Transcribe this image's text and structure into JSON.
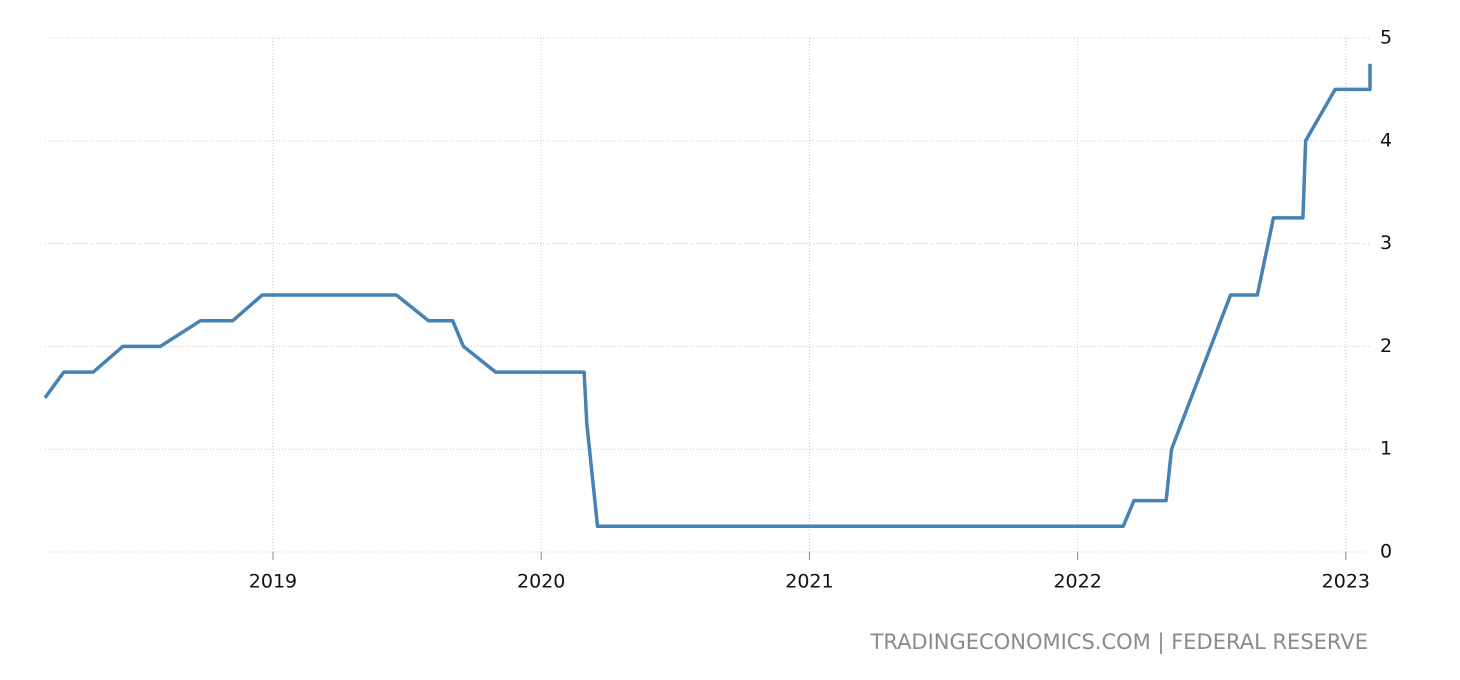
{
  "chart_data": {
    "type": "line",
    "source": "TRADINGECONOMICS.COM | FEDERAL RESERVE",
    "x": [
      2018.15,
      2018.22,
      2018.33,
      2018.44,
      2018.58,
      2018.73,
      2018.85,
      2018.96,
      2019.46,
      2019.58,
      2019.67,
      2019.71,
      2019.83,
      2020.16,
      2020.17,
      2020.21,
      2022.17,
      2022.21,
      2022.33,
      2022.35,
      2022.57,
      2022.67,
      2022.73,
      2022.84,
      2022.85,
      2022.96,
      2023.09,
      2023.09
    ],
    "series": [
      {
        "color": "#4682b4",
        "values": [
          1.5,
          1.75,
          1.75,
          2.0,
          2.0,
          2.25,
          2.25,
          2.5,
          2.5,
          2.25,
          2.25,
          2.0,
          1.75,
          1.75,
          1.25,
          0.25,
          0.25,
          0.5,
          0.5,
          1.0,
          2.5,
          2.5,
          3.25,
          3.25,
          4.0,
          4.5,
          4.5,
          4.75
        ]
      }
    ],
    "xlim": [
      2018.15,
      2023.09
    ],
    "xticks": [
      2019,
      2020,
      2021,
      2022,
      2023
    ],
    "ylim": [
      0,
      5
    ],
    "yticks": [
      0,
      1,
      2,
      3,
      4,
      5
    ],
    "grid": true
  }
}
